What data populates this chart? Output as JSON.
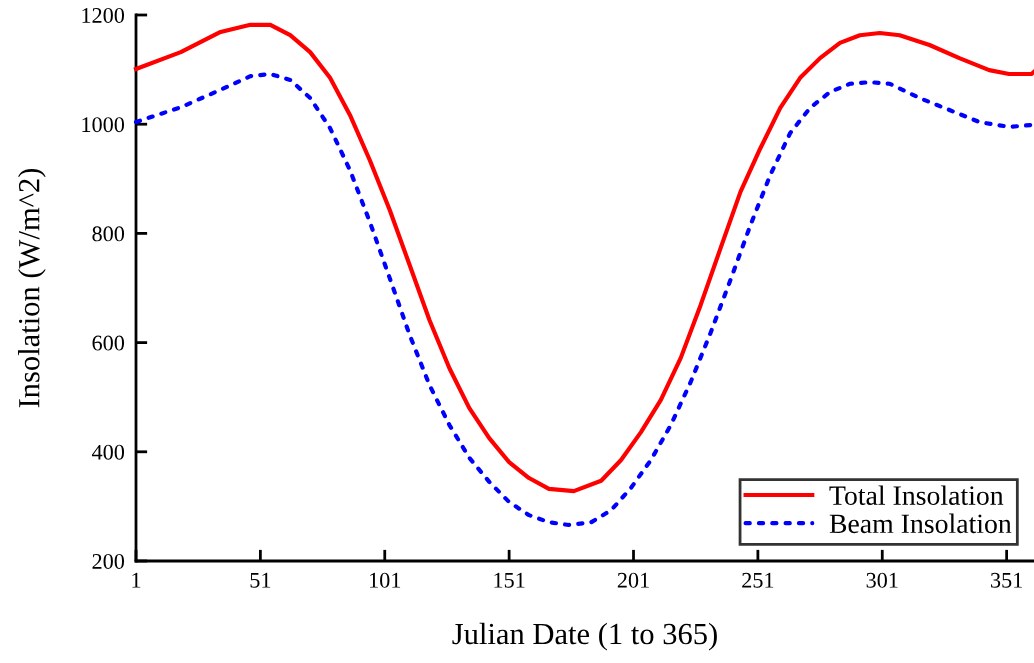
{
  "chart_data": {
    "type": "line",
    "xlabel": "Julian Date (1 to 365)",
    "ylabel": "Insolation (W/m^2)",
    "xlim": [
      1,
      362
    ],
    "ylim": [
      200,
      1200
    ],
    "xticks": [
      1,
      51,
      101,
      151,
      201,
      251,
      301,
      351
    ],
    "yticks": [
      200,
      400,
      600,
      800,
      1000,
      1200
    ],
    "grid": false,
    "legend": "bottom right",
    "series": [
      {
        "name": "Total Insolation",
        "color": "#ff0000",
        "line_style": "solid",
        "x": [
          1,
          19,
          35,
          47,
          55,
          63,
          71,
          79,
          87,
          95,
          103,
          111,
          119,
          127,
          135,
          143,
          151,
          159,
          167,
          177,
          188,
          196,
          204,
          212,
          220,
          228,
          236,
          244,
          252,
          260,
          268,
          276,
          284,
          292,
          300,
          308,
          320,
          332,
          344,
          352,
          361,
          362
        ],
        "values": [
          1101,
          1132,
          1169,
          1182,
          1182,
          1163,
          1132,
          1085,
          1017,
          934,
          843,
          742,
          641,
          553,
          480,
          425,
          381,
          352,
          332,
          328,
          347,
          385,
          436,
          495,
          572,
          669,
          773,
          876,
          956,
          1030,
          1085,
          1121,
          1149,
          1163,
          1167,
          1163,
          1145,
          1121,
          1099,
          1092,
          1092,
          1096
        ]
      },
      {
        "name": "Beam Insolation",
        "color": "#0000ff",
        "line_style": "dotted",
        "x": [
          1,
          19,
          35,
          47,
          55,
          63,
          71,
          79,
          87,
          95,
          103,
          111,
          119,
          127,
          135,
          143,
          151,
          159,
          167,
          175,
          184,
          192,
          200,
          208,
          216,
          224,
          232,
          240,
          248,
          256,
          264,
          272,
          280,
          288,
          296,
          304,
          316,
          328,
          340,
          352,
          362
        ],
        "values": [
          1004,
          1031,
          1063,
          1088,
          1092,
          1081,
          1048,
          993,
          916,
          821,
          718,
          614,
          522,
          449,
          389,
          345,
          308,
          284,
          271,
          266,
          271,
          293,
          334,
          385,
          449,
          528,
          618,
          715,
          815,
          907,
          984,
          1030,
          1059,
          1074,
          1077,
          1074,
          1048,
          1026,
          1004,
          995,
          999
        ]
      }
    ]
  }
}
